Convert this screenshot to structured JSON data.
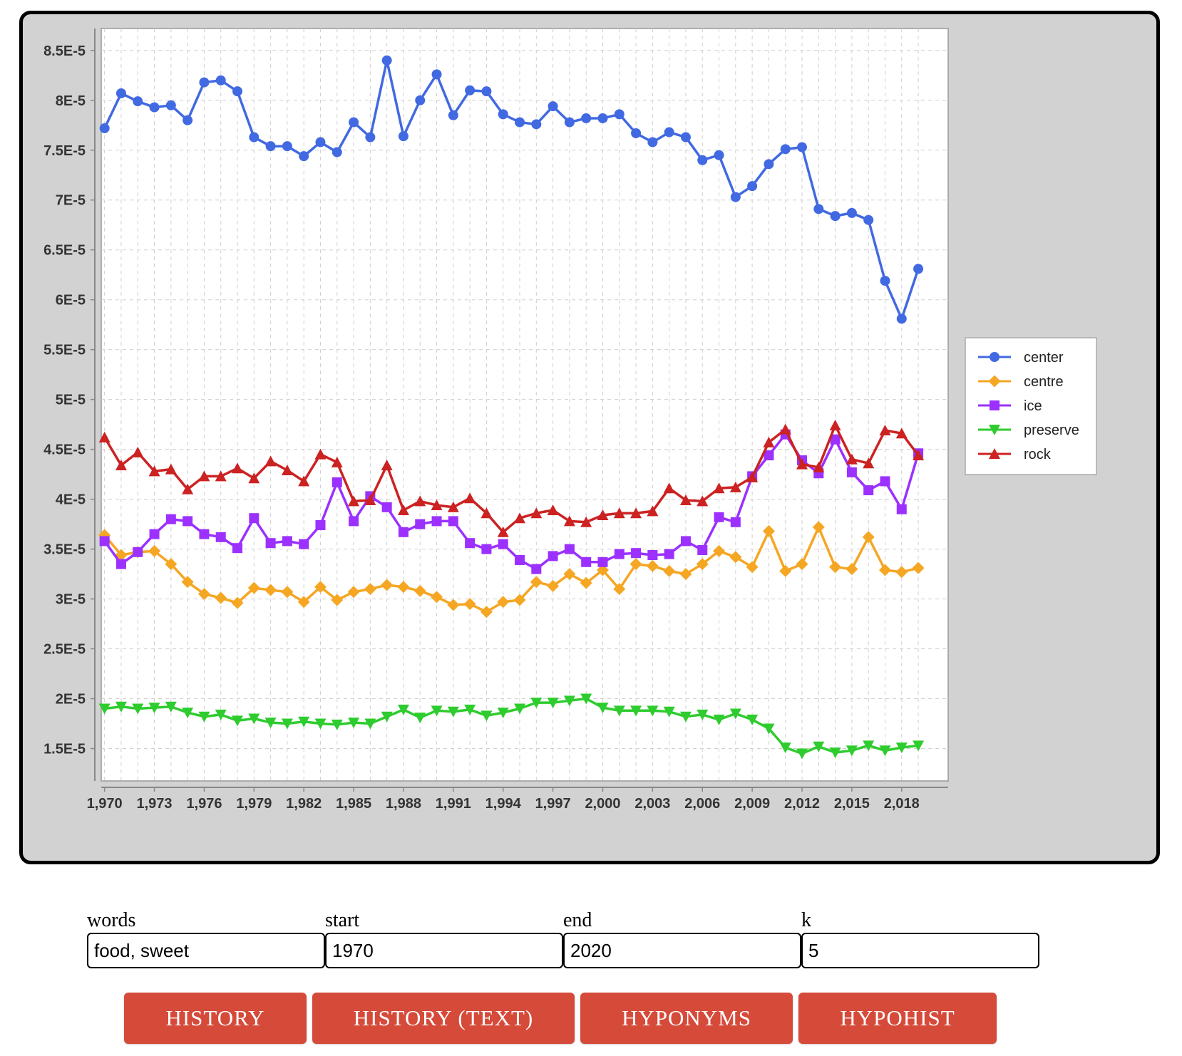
{
  "chart_data": {
    "type": "line",
    "x": [
      1970,
      1971,
      1972,
      1973,
      1974,
      1975,
      1976,
      1977,
      1978,
      1979,
      1980,
      1981,
      1982,
      1983,
      1984,
      1985,
      1986,
      1987,
      1988,
      1989,
      1990,
      1991,
      1992,
      1993,
      1994,
      1995,
      1996,
      1997,
      1998,
      1999,
      2000,
      2001,
      2002,
      2003,
      2004,
      2005,
      2006,
      2007,
      2008,
      2009,
      2010,
      2011,
      2012,
      2013,
      2014,
      2015,
      2016,
      2017,
      2018,
      2019
    ],
    "x_tick_labels": [
      "1,970",
      "1,973",
      "1,976",
      "1,979",
      "1,982",
      "1,985",
      "1,988",
      "1,991",
      "1,994",
      "1,997",
      "2,000",
      "2,003",
      "2,006",
      "2,009",
      "2,012",
      "2,015",
      "2,018"
    ],
    "x_tick_values": [
      1970,
      1973,
      1976,
      1979,
      1982,
      1985,
      1988,
      1991,
      1994,
      1997,
      2000,
      2003,
      2006,
      2009,
      2012,
      2015,
      2018
    ],
    "y_tick_labels": [
      "1.5E-5",
      "2E-5",
      "2.5E-5",
      "3E-5",
      "3.5E-5",
      "4E-5",
      "4.5E-5",
      "5E-5",
      "5.5E-5",
      "6E-5",
      "6.5E-5",
      "7E-5",
      "7.5E-5",
      "8E-5",
      "8.5E-5"
    ],
    "y_tick_values": [
      1.5e-05,
      2e-05,
      2.5e-05,
      3e-05,
      3.5e-05,
      4e-05,
      4.5e-05,
      5e-05,
      5.5e-05,
      6e-05,
      6.5e-05,
      7e-05,
      7.5e-05,
      8e-05,
      8.5e-05
    ],
    "xlim": [
      1969.8,
      2020.8
    ],
    "ylim": [
      1.175e-05,
      8.72e-05
    ],
    "grid": true,
    "legend_position": "right",
    "series": [
      {
        "name": "center",
        "color": "#4169e1",
        "marker": "circle",
        "values": [
          7.72e-05,
          8.07e-05,
          7.99e-05,
          7.93e-05,
          7.95e-05,
          7.8e-05,
          8.18e-05,
          8.2e-05,
          8.09e-05,
          7.63e-05,
          7.54e-05,
          7.54e-05,
          7.44e-05,
          7.58e-05,
          7.48e-05,
          7.78e-05,
          7.63e-05,
          8.4e-05,
          7.64e-05,
          8e-05,
          8.26e-05,
          7.85e-05,
          8.1e-05,
          8.09e-05,
          7.86e-05,
          7.78e-05,
          7.76e-05,
          7.94e-05,
          7.78e-05,
          7.82e-05,
          7.82e-05,
          7.86e-05,
          7.67e-05,
          7.58e-05,
          7.68e-05,
          7.63e-05,
          7.4e-05,
          7.45e-05,
          7.03e-05,
          7.14e-05,
          7.36e-05,
          7.51e-05,
          7.53e-05,
          6.91e-05,
          6.84e-05,
          6.87e-05,
          6.8e-05,
          6.19e-05,
          5.81e-05,
          6.31e-05
        ]
      },
      {
        "name": "centre",
        "color": "#f5a623",
        "marker": "diamond",
        "values": [
          3.64e-05,
          3.44e-05,
          3.47e-05,
          3.48e-05,
          3.35e-05,
          3.17e-05,
          3.05e-05,
          3.01e-05,
          2.96e-05,
          3.11e-05,
          3.09e-05,
          3.07e-05,
          2.97e-05,
          3.12e-05,
          2.99e-05,
          3.07e-05,
          3.1e-05,
          3.14e-05,
          3.12e-05,
          3.08e-05,
          3.02e-05,
          2.94e-05,
          2.95e-05,
          2.87e-05,
          2.97e-05,
          2.99e-05,
          3.17e-05,
          3.13e-05,
          3.25e-05,
          3.16e-05,
          3.29e-05,
          3.1e-05,
          3.35e-05,
          3.33e-05,
          3.28e-05,
          3.25e-05,
          3.35e-05,
          3.48e-05,
          3.42e-05,
          3.32e-05,
          3.68e-05,
          3.28e-05,
          3.35e-05,
          3.72e-05,
          3.32e-05,
          3.3e-05,
          3.62e-05,
          3.29e-05,
          3.27e-05,
          3.31e-05
        ]
      },
      {
        "name": "ice",
        "color": "#9b30ff",
        "marker": "square",
        "values": [
          3.58e-05,
          3.35e-05,
          3.47e-05,
          3.65e-05,
          3.8e-05,
          3.78e-05,
          3.65e-05,
          3.62e-05,
          3.51e-05,
          3.81e-05,
          3.56e-05,
          3.58e-05,
          3.55e-05,
          3.74e-05,
          4.17e-05,
          3.78e-05,
          4.03e-05,
          3.92e-05,
          3.67e-05,
          3.75e-05,
          3.78e-05,
          3.78e-05,
          3.56e-05,
          3.5e-05,
          3.55e-05,
          3.39e-05,
          3.3e-05,
          3.43e-05,
          3.5e-05,
          3.37e-05,
          3.37e-05,
          3.45e-05,
          3.46e-05,
          3.44e-05,
          3.45e-05,
          3.58e-05,
          3.49e-05,
          3.82e-05,
          3.77e-05,
          4.23e-05,
          4.44e-05,
          4.65e-05,
          4.39e-05,
          4.26e-05,
          4.6e-05,
          4.27e-05,
          4.09e-05,
          4.18e-05,
          3.9e-05,
          4.46e-05
        ]
      },
      {
        "name": "preserve",
        "color": "#2ecc2e",
        "marker": "triangle-down",
        "values": [
          1.9e-05,
          1.92e-05,
          1.9e-05,
          1.91e-05,
          1.92e-05,
          1.86e-05,
          1.82e-05,
          1.84e-05,
          1.78e-05,
          1.8e-05,
          1.76e-05,
          1.75e-05,
          1.77e-05,
          1.75e-05,
          1.74e-05,
          1.76e-05,
          1.75e-05,
          1.82e-05,
          1.89e-05,
          1.81e-05,
          1.88e-05,
          1.87e-05,
          1.89e-05,
          1.83e-05,
          1.86e-05,
          1.9e-05,
          1.96e-05,
          1.96e-05,
          1.98e-05,
          2e-05,
          1.91e-05,
          1.88e-05,
          1.88e-05,
          1.88e-05,
          1.87e-05,
          1.82e-05,
          1.84e-05,
          1.79e-05,
          1.85e-05,
          1.79e-05,
          1.7e-05,
          1.51e-05,
          1.45e-05,
          1.52e-05,
          1.46e-05,
          1.48e-05,
          1.53e-05,
          1.48e-05,
          1.51e-05,
          1.53e-05
        ]
      },
      {
        "name": "rock",
        "color": "#cc2222",
        "marker": "triangle-up",
        "values": [
          4.62e-05,
          4.34e-05,
          4.47e-05,
          4.28e-05,
          4.3e-05,
          4.1e-05,
          4.23e-05,
          4.23e-05,
          4.31e-05,
          4.21e-05,
          4.38e-05,
          4.29e-05,
          4.18e-05,
          4.45e-05,
          4.37e-05,
          3.98e-05,
          3.99e-05,
          4.34e-05,
          3.89e-05,
          3.98e-05,
          3.94e-05,
          3.92e-05,
          4.01e-05,
          3.86e-05,
          3.67e-05,
          3.81e-05,
          3.86e-05,
          3.89e-05,
          3.78e-05,
          3.77e-05,
          3.84e-05,
          3.86e-05,
          3.86e-05,
          3.88e-05,
          4.11e-05,
          3.99e-05,
          3.98e-05,
          4.11e-05,
          4.12e-05,
          4.22e-05,
          4.57e-05,
          4.7e-05,
          4.35e-05,
          4.32e-05,
          4.74e-05,
          4.4e-05,
          4.36e-05,
          4.69e-05,
          4.66e-05,
          4.44e-05
        ]
      }
    ]
  },
  "form": {
    "words_label": "words",
    "words_value": "food, sweet",
    "start_label": "start",
    "start_value": "1970",
    "end_label": "end",
    "end_value": "2020",
    "k_label": "k",
    "k_value": "5"
  },
  "buttons": {
    "history": "HISTORY",
    "history_text": "HISTORY (TEXT)",
    "hyponyms": "HYPONYMS",
    "hypohist": "HYPOHIST"
  },
  "colors": {
    "button_bg": "#d64a3a",
    "panel_bg": "#d2d2d2"
  }
}
